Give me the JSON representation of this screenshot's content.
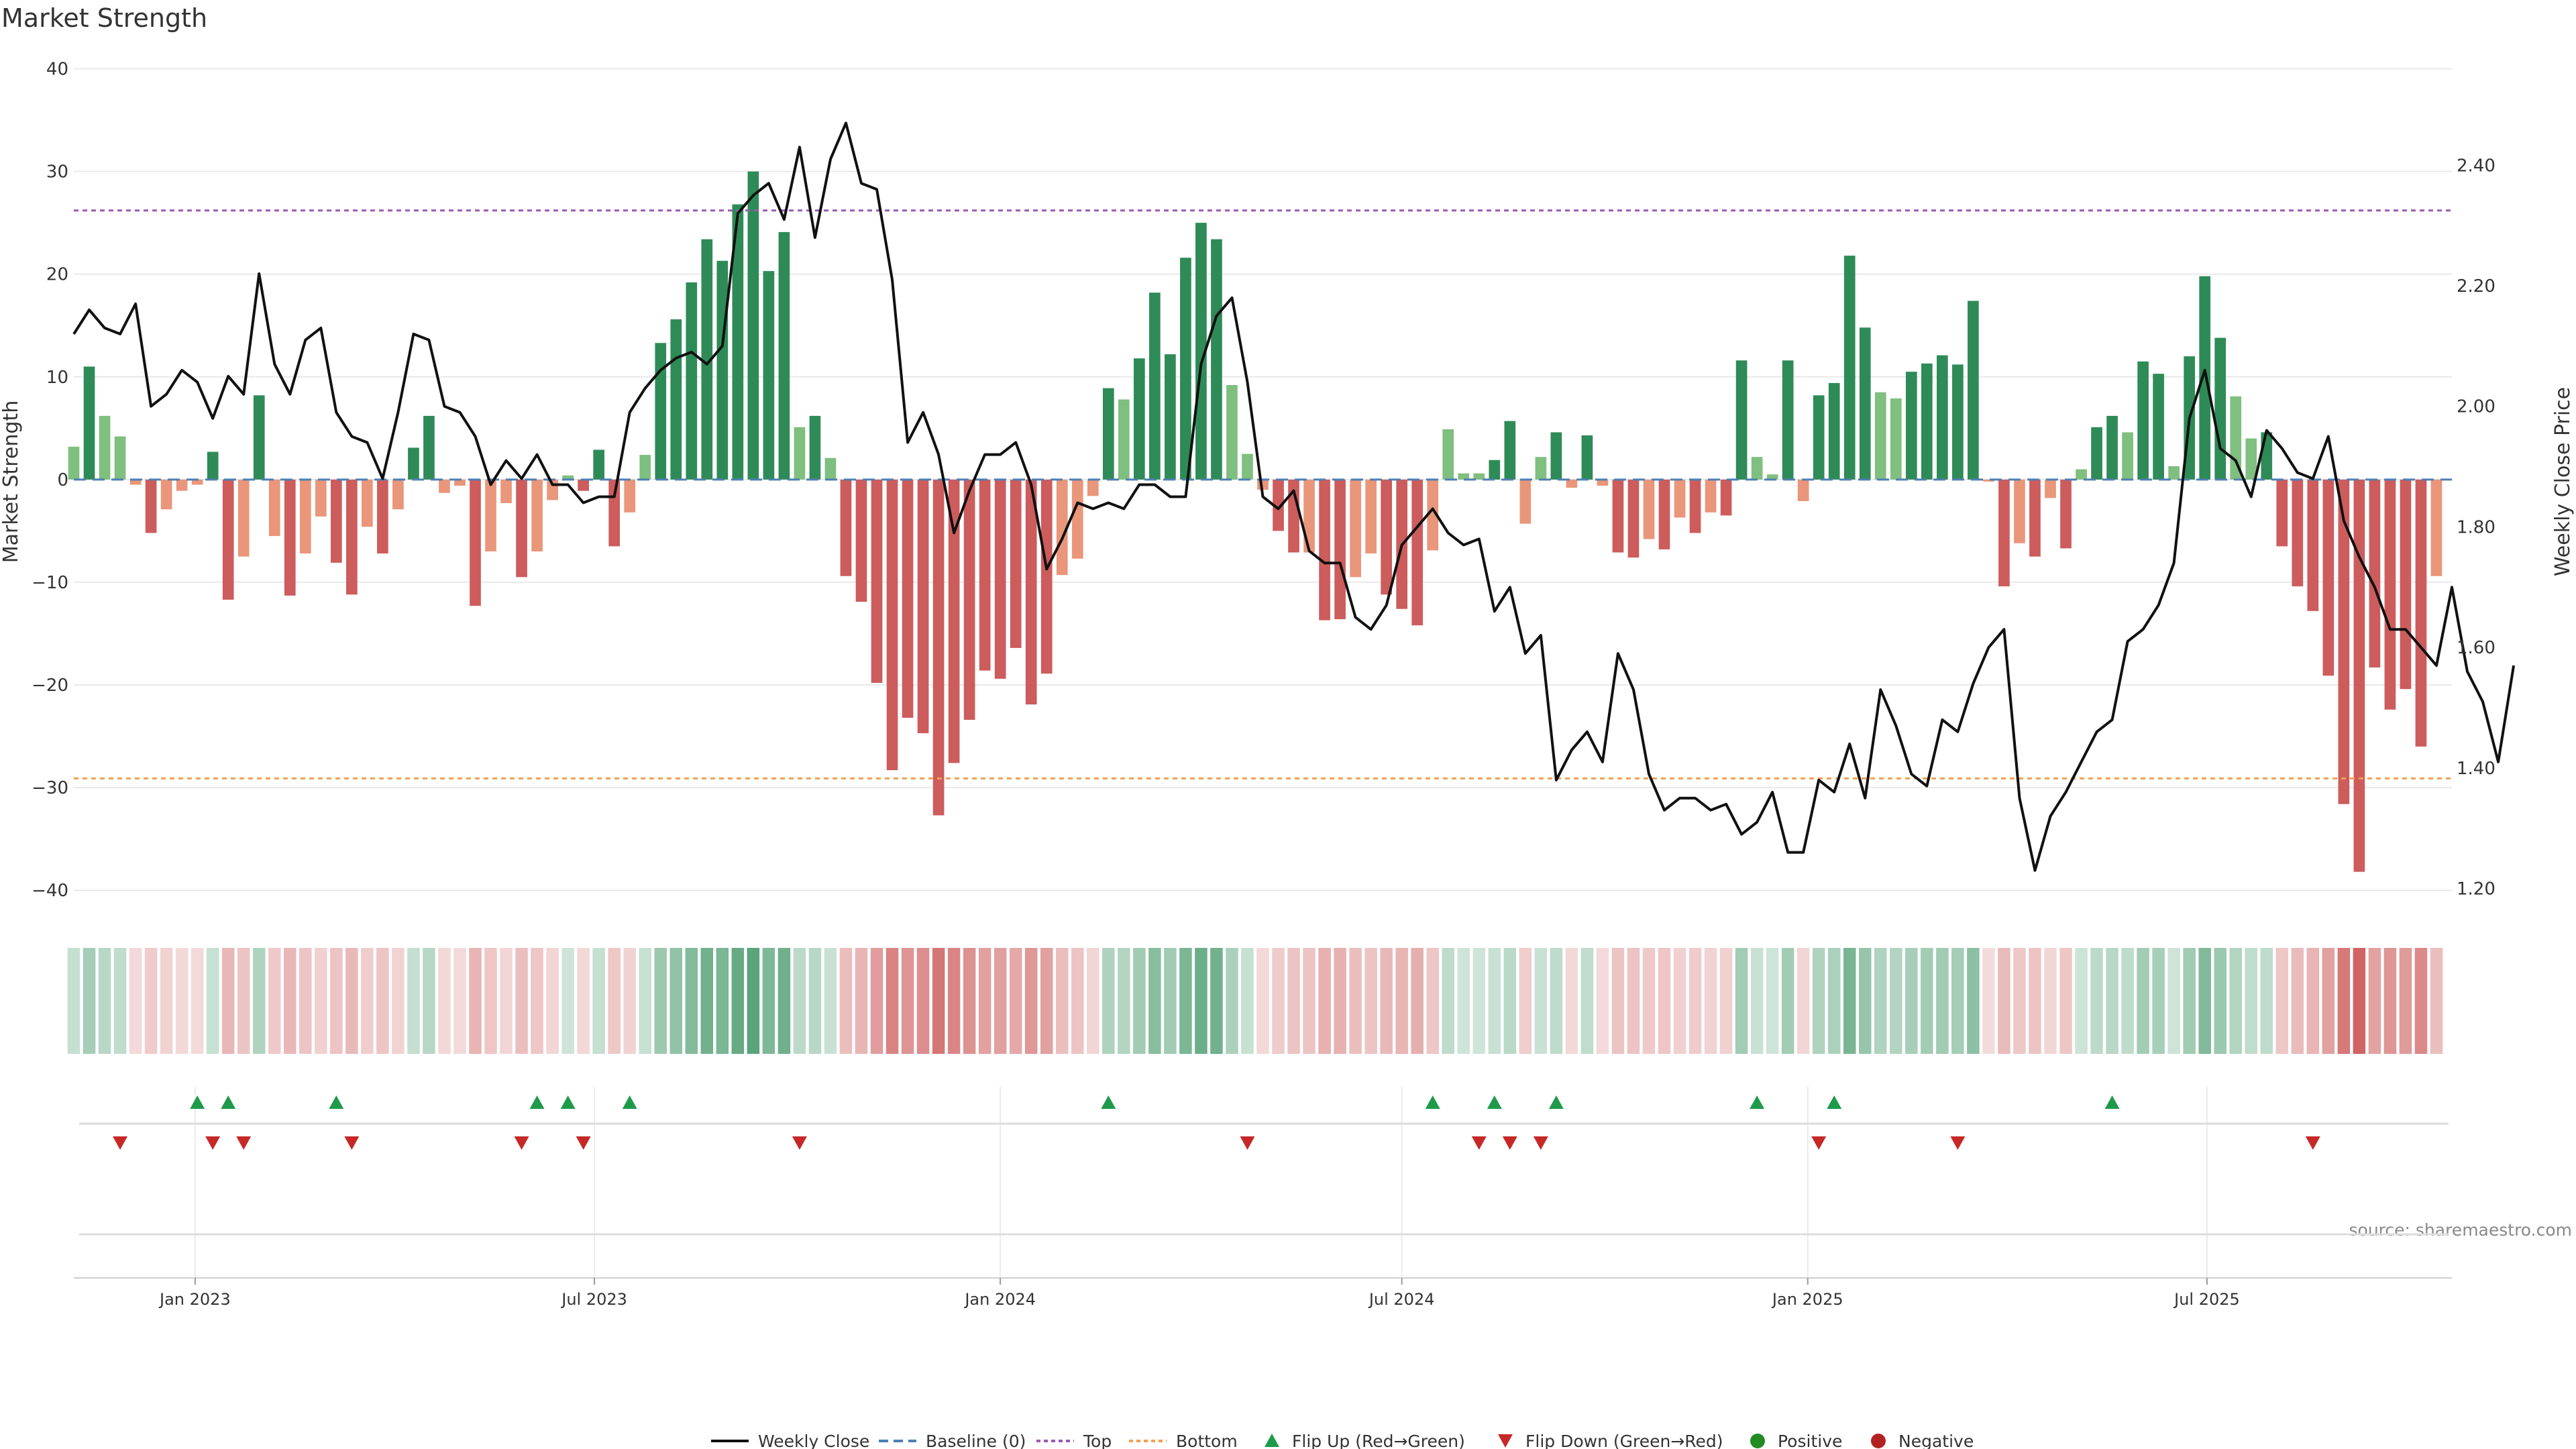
{
  "chart_data": {
    "type": "bar",
    "title": "Market Strength",
    "ylabel": "Market Strength",
    "y2label": "Weekly Close Price",
    "ylim": [
      -41,
      40
    ],
    "y2lim": [
      1.18,
      2.56
    ],
    "yticks": [
      40,
      30,
      20,
      10,
      0,
      -10,
      -20,
      -30,
      -40
    ],
    "yticklabels": [
      "40",
      "30",
      "20",
      "10",
      "0",
      "−10",
      "−20",
      "−30",
      "−40"
    ],
    "y2ticks": [
      2.4,
      2.2,
      2.0,
      1.8,
      1.6,
      1.4,
      1.2
    ],
    "y2ticklabels": [
      "2.40",
      "2.20",
      "2.00",
      "1.80",
      "1.60",
      "1.40",
      "1.20"
    ],
    "top_line": 26.2,
    "bottom_line": -29.1,
    "grid": true,
    "x_start": "2022-11-07",
    "x_end": "2025-10-20",
    "x_step_days": 7,
    "xticks": [
      {
        "date": "2023-01-01",
        "label": "Jan 2023"
      },
      {
        "date": "2023-07-01",
        "label": "Jul 2023"
      },
      {
        "date": "2024-01-01",
        "label": "Jan 2024"
      },
      {
        "date": "2024-07-01",
        "label": "Jul 2024"
      },
      {
        "date": "2025-01-01",
        "label": "Jan 2025"
      },
      {
        "date": "2025-07-01",
        "label": "Jul 2025"
      }
    ],
    "series": [
      {
        "name": "Market Strength",
        "values": [
          3.2,
          11,
          6.2,
          4.2,
          -0.5,
          -5.2,
          -2.9,
          -1.1,
          -0.5,
          2.7,
          -11.7,
          -7.5,
          8.2,
          -5.5,
          -11.3,
          -7.2,
          -3.6,
          -8.1,
          -11.2,
          -4.6,
          -7.2,
          -2.9,
          3.1,
          6.2,
          -1.3,
          -0.6,
          -12.3,
          -7,
          -2.3,
          -9.5,
          -7,
          -2,
          0.4,
          -1.1,
          2.9,
          -6.5,
          -3.2,
          2.4,
          13.3,
          15.6,
          19.2,
          23.4,
          21.3,
          26.8,
          30,
          20.3,
          24.1,
          5.1,
          6.2,
          2.1,
          -9.4,
          -11.9,
          -19.8,
          -28.3,
          -23.2,
          -24.7,
          -32.7,
          -27.6,
          -23.4,
          -18.6,
          -19.4,
          -16.4,
          -21.9,
          -18.9,
          -9.3,
          -7.7,
          -1.6,
          8.9,
          7.8,
          11.8,
          18.2,
          12.2,
          21.6,
          25,
          23.4,
          9.2,
          2.5,
          -1,
          -5,
          -7.1,
          -7.1,
          -13.7,
          -13.6,
          -9.5,
          -7.2,
          -11.2,
          -12.6,
          -14.2,
          -6.9,
          4.9,
          0.6,
          0.6,
          1.9,
          5.7,
          -4.3,
          2.2,
          4.6,
          -0.8,
          4.3,
          -0.6,
          -7.1,
          -7.6,
          -5.8,
          -6.8,
          -3.7,
          -5.2,
          -3.2,
          -3.5,
          11.6,
          2.2,
          0.5,
          11.6,
          -2.1,
          8.2,
          9.4,
          21.8,
          14.8,
          8.5,
          7.9,
          10.5,
          11.3,
          12.1,
          11.2,
          17.4,
          -0.2,
          -10.4,
          -6.2,
          -7.5,
          -1.8,
          -6.7,
          1,
          5.1,
          6.2,
          4.6,
          11.5,
          10.3,
          1.3,
          12,
          19.8,
          13.8,
          8.1,
          4,
          4.6,
          -6.5,
          -10.4,
          -12.8,
          -19.1,
          -31.6,
          -38.2,
          -18.3,
          -22.4,
          -20.4,
          -26,
          -9.4
        ]
      },
      {
        "name": "Weekly Close",
        "values": [
          2.12,
          2.16,
          2.13,
          2.12,
          2.17,
          2.0,
          2.02,
          2.06,
          2.04,
          1.98,
          2.05,
          2.02,
          2.22,
          2.07,
          2.02,
          2.11,
          2.13,
          1.99,
          1.95,
          1.94,
          1.88,
          1.99,
          2.12,
          2.11,
          2.0,
          1.99,
          1.95,
          1.87,
          1.91,
          1.88,
          1.92,
          1.87,
          1.87,
          1.84,
          1.85,
          1.85,
          1.99,
          2.03,
          2.06,
          2.08,
          2.09,
          2.07,
          2.1,
          2.32,
          2.35,
          2.37,
          2.31,
          2.43,
          2.28,
          2.41,
          2.47,
          2.37,
          2.36,
          2.21,
          1.94,
          1.99,
          1.92,
          1.79,
          1.86,
          1.92,
          1.92,
          1.94,
          1.87,
          1.73,
          1.78,
          1.84,
          1.83,
          1.84,
          1.83,
          1.87,
          1.87,
          1.85,
          1.85,
          2.07,
          2.15,
          2.18,
          2.04,
          1.85,
          1.83,
          1.86,
          1.76,
          1.74,
          1.74,
          1.65,
          1.63,
          1.67,
          1.77,
          1.8,
          1.83,
          1.79,
          1.77,
          1.78,
          1.66,
          1.7,
          1.59,
          1.62,
          1.38,
          1.43,
          1.46,
          1.41,
          1.59,
          1.53,
          1.39,
          1.33,
          1.35,
          1.35,
          1.33,
          1.34,
          1.29,
          1.31,
          1.36,
          1.26,
          1.26,
          1.38,
          1.36,
          1.44,
          1.35,
          1.53,
          1.47,
          1.39,
          1.37,
          1.48,
          1.46,
          1.54,
          1.6,
          1.63,
          1.35,
          1.23,
          1.32,
          1.36,
          1.41,
          1.46,
          1.48,
          1.61,
          1.63,
          1.67,
          1.74,
          1.98,
          2.06,
          1.93,
          1.91,
          1.85,
          1.96,
          1.93,
          1.89,
          1.88,
          1.95,
          1.81,
          1.75,
          1.7,
          1.63,
          1.63,
          1.6,
          1.57,
          1.7,
          1.56,
          1.51,
          1.41,
          1.57
        ]
      },
      {
        "name": "Flip Up (Red→Green)",
        "values": [
          "2023-01-02",
          "2023-01-16",
          "2023-03-06",
          "2023-06-05",
          "2023-06-19",
          "2023-07-17",
          "2024-02-19",
          "2024-07-15",
          "2024-08-12",
          "2024-09-09",
          "2024-12-09",
          "2025-01-13",
          "2025-05-19"
        ]
      },
      {
        "name": "Flip Down (Green→Red)",
        "values": [
          "2022-11-28",
          "2023-01-09",
          "2023-01-23",
          "2023-03-13",
          "2023-05-29",
          "2023-06-26",
          "2023-10-02",
          "2024-04-22",
          "2024-08-05",
          "2024-08-19",
          "2024-09-02",
          "2025-01-06",
          "2025-03-10",
          "2025-08-18"
        ]
      }
    ],
    "legend": {
      "placement": "bottom-center",
      "items": [
        {
          "label": "Weekly Close"
        },
        {
          "label": "Baseline (0)"
        },
        {
          "label": "Top"
        },
        {
          "label": "Bottom"
        },
        {
          "label": "Flip Up (Red→Green)"
        },
        {
          "label": "Flip Down (Green→Red)"
        },
        {
          "label": "Positive"
        },
        {
          "label": "Negative"
        }
      ]
    },
    "source": "source: sharemaestro.com",
    "colors": {
      "pos_dark": "#2e8b57",
      "pos_light": "#7fbf7f",
      "neg_dark": "#cd5c5c",
      "neg_light": "#e9967a",
      "line": "#111111",
      "baseline": "#4f7fb4",
      "top": "#9b59b6",
      "bottom": "#f0a050",
      "flip_up": "#1f9a4a",
      "flip_down": "#c62828",
      "positive": "#228b22",
      "negative": "#b22222",
      "grid": "#e9e9e9"
    }
  }
}
